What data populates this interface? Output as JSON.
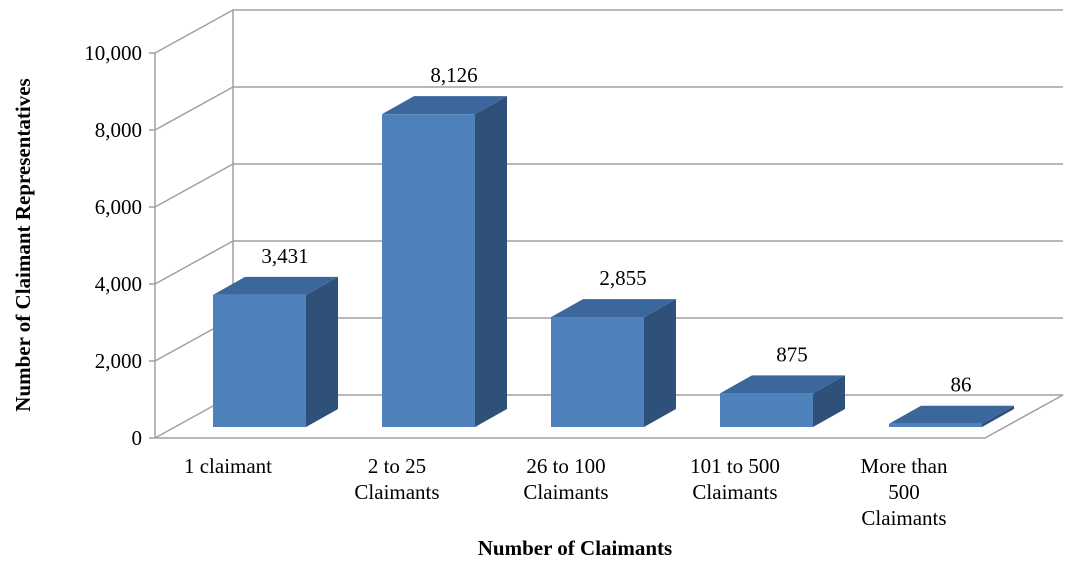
{
  "chart_data": {
    "type": "bar3d",
    "xlabel": "Number of Claimants",
    "ylabel": "Number of Claimant Representatives",
    "categories": [
      "1 claimant",
      "2 to 25 Claimants",
      "26 to 100 Claimants",
      "101 to 500 Claimants",
      "More than 500 Claimants"
    ],
    "values": [
      3431,
      8126,
      2855,
      875,
      86
    ],
    "value_labels": [
      "3,431",
      "8,126",
      "2,855",
      "875",
      "86"
    ],
    "color": "#4f81bd",
    "ylim": [
      0,
      10000
    ],
    "yticks": [
      0,
      {
        "value": 2000,
        "label": "2,000"
      },
      {
        "value": 4000,
        "label": "4,000"
      },
      {
        "value": 6000,
        "label": "6,000"
      },
      {
        "value": 8000,
        "label": "8,000"
      },
      {
        "value": 10000,
        "label": "10,000"
      }
    ],
    "grid": true
  }
}
